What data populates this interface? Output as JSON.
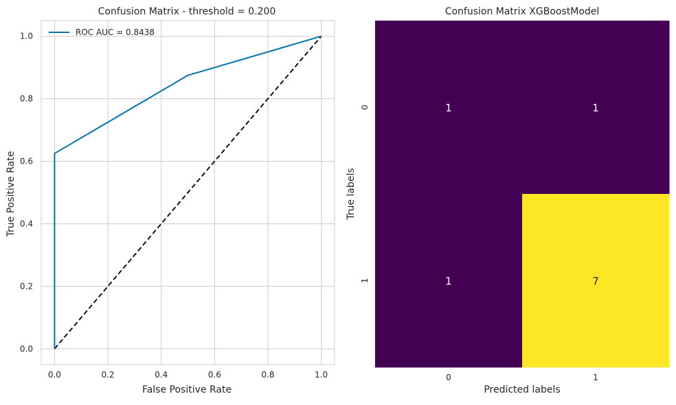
{
  "colors": {
    "roc_line": "#0072b2",
    "diagonal": "#111111",
    "grid": "#cccccc",
    "cell_low": "#440154",
    "cell_high": "#fde725",
    "text_light": "#ffffff",
    "text_dark": "#262626"
  },
  "chart_data": [
    {
      "type": "line",
      "title": "Confusion Matrix - threshold = 0.200",
      "xlabel": "False Positive Rate",
      "ylabel": "True Positive Rate",
      "xlim": [
        -0.05,
        1.05
      ],
      "ylim": [
        -0.05,
        1.05
      ],
      "xticks": [
        0.0,
        0.2,
        0.4,
        0.6,
        0.8,
        1.0
      ],
      "yticks": [
        0.0,
        0.2,
        0.4,
        0.6,
        0.8,
        1.0
      ],
      "xtick_labels": [
        "0.0",
        "0.2",
        "0.4",
        "0.6",
        "0.8",
        "1.0"
      ],
      "ytick_labels": [
        "0.0",
        "0.2",
        "0.4",
        "0.6",
        "0.8",
        "1.0"
      ],
      "grid": true,
      "legend_position": "top-left",
      "series": [
        {
          "name": "ROC AUC = 0.8438",
          "x": [
            0.0,
            0.0,
            0.5,
            1.0
          ],
          "y": [
            0.0,
            0.625,
            0.875,
            1.0
          ]
        }
      ],
      "reference_line": {
        "x": [
          0.0,
          1.0
        ],
        "y": [
          0.0,
          1.0
        ],
        "style": "dashed"
      }
    },
    {
      "type": "heatmap",
      "title": "Confusion Matrix XGBoostModel",
      "xlabel": "Predicted labels",
      "ylabel": "True labels",
      "x_categories": [
        "0",
        "1"
      ],
      "y_categories": [
        "0",
        "1"
      ],
      "values": [
        [
          1,
          1
        ],
        [
          1,
          7
        ]
      ],
      "cell_labels": [
        [
          "1",
          "1"
        ],
        [
          "1",
          "7"
        ]
      ],
      "colormap": "viridis",
      "colorbar": false
    }
  ]
}
